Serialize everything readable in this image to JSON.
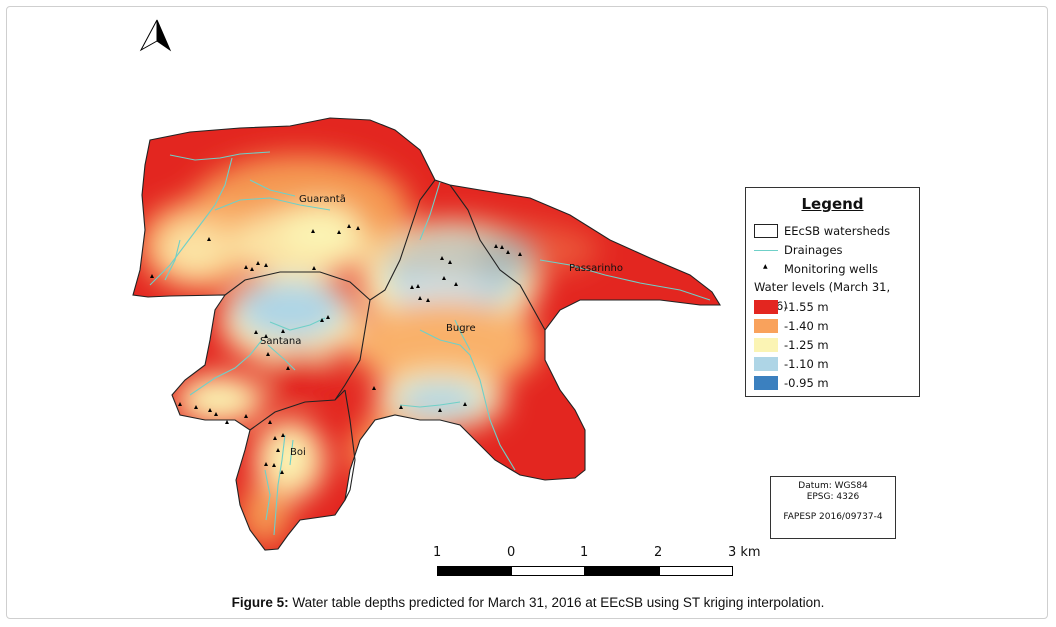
{
  "map": {
    "watershed_labels": [
      "Guarantã",
      "Passarinho",
      "Santana",
      "Bugre",
      "Boi"
    ],
    "colors": {
      "deep": "#e32620",
      "orange": "#f9a25c",
      "yellow": "#fbf4b4",
      "lightblue": "#aed5e6",
      "blue": "#3b80bf",
      "drainage": "#6fd0c8"
    }
  },
  "legend": {
    "title": "Legend",
    "items": {
      "watersheds": "EEcSB watersheds",
      "drainages": "Drainages",
      "wells": "Monitoring wells"
    },
    "section_title": "Water levels (March 31, 2016)",
    "classes": [
      {
        "label": "-1.55 m",
        "color": "#e32620"
      },
      {
        "label": "-1.40 m",
        "color": "#f9a25c"
      },
      {
        "label": "-1.25 m",
        "color": "#fbf4b4"
      },
      {
        "label": "-1.10 m",
        "color": "#aed5e6"
      },
      {
        "label": "-0.95 m",
        "color": "#3b80bf"
      }
    ]
  },
  "datum": {
    "datum": "Datum: WGS84",
    "epsg": "EPSG: 4326",
    "grant": "FAPESP 2016/09737-4"
  },
  "scalebar": {
    "labels": [
      "1",
      "0",
      "1",
      "2",
      "3 km"
    ]
  },
  "caption": {
    "label": "Figure 5:",
    "text": " Water table depths predicted for March 31, 2016 at EEcSB using ST kriging interpolation."
  },
  "north_arrow": "north-arrow-icon"
}
